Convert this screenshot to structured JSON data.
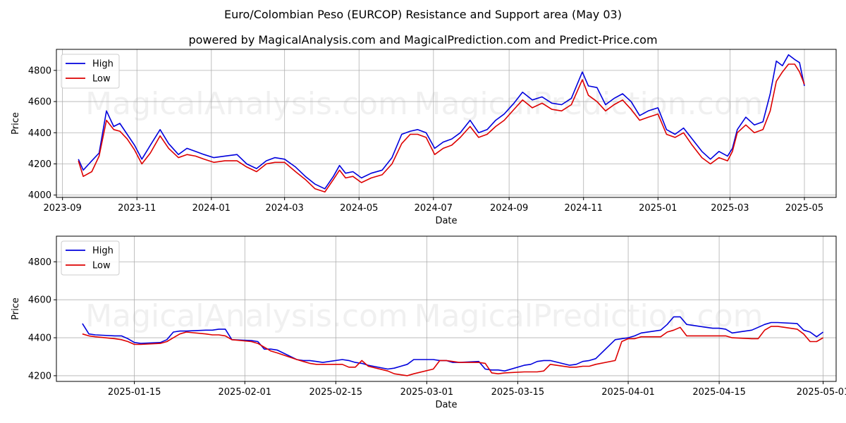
{
  "title": "Euro/Colombian Peso (EURCOP) Resistance and Support area (May 03)",
  "subtitle": "powered by MagicalAnalysis.com and MagicalPrediction.com and Predict-Price.com",
  "watermarks": [
    "MagicalAnalysis.com",
    "MagicalPrediction.com"
  ],
  "colors": {
    "high": "#0000dd",
    "low": "#dd0000",
    "grid": "#b0b0b0"
  },
  "chart_data": [
    {
      "type": "line",
      "title": "",
      "xlabel": "Date",
      "ylabel": "Price",
      "ylim": [
        3985,
        4935
      ],
      "xlim": [
        "2023-08-27",
        "2025-05-27"
      ],
      "yticks": [
        4000,
        4200,
        4400,
        4600,
        4800
      ],
      "xticks": [
        {
          "date": "2023-09-01",
          "label": "2023-09"
        },
        {
          "date": "2023-11-01",
          "label": "2023-11"
        },
        {
          "date": "2024-01-01",
          "label": "2024-01"
        },
        {
          "date": "2024-03-01",
          "label": "2024-03"
        },
        {
          "date": "2024-05-01",
          "label": "2024-05"
        },
        {
          "date": "2024-07-01",
          "label": "2024-07"
        },
        {
          "date": "2024-09-01",
          "label": "2024-09"
        },
        {
          "date": "2024-11-01",
          "label": "2024-11"
        },
        {
          "date": "2025-01-01",
          "label": "2025-01"
        },
        {
          "date": "2025-03-01",
          "label": "2025-03"
        },
        {
          "date": "2025-05-01",
          "label": "2025-05"
        }
      ],
      "grid": true,
      "legend": "upper-left",
      "series": [
        {
          "name": "High",
          "x": [
            "2023-09-14",
            "2023-09-18",
            "2023-09-25",
            "2023-10-01",
            "2023-10-07",
            "2023-10-13",
            "2023-10-18",
            "2023-10-24",
            "2023-10-30",
            "2023-11-05",
            "2023-11-12",
            "2023-11-20",
            "2023-11-27",
            "2023-12-05",
            "2023-12-12",
            "2023-12-19",
            "2023-12-26",
            "2024-01-03",
            "2024-01-12",
            "2024-01-22",
            "2024-01-30",
            "2024-02-07",
            "2024-02-15",
            "2024-02-22",
            "2024-03-01",
            "2024-03-10",
            "2024-03-18",
            "2024-03-26",
            "2024-04-03",
            "2024-04-10",
            "2024-04-15",
            "2024-04-20",
            "2024-04-26",
            "2024-05-03",
            "2024-05-11",
            "2024-05-20",
            "2024-05-28",
            "2024-06-05",
            "2024-06-12",
            "2024-06-18",
            "2024-06-25",
            "2024-07-02",
            "2024-07-09",
            "2024-07-16",
            "2024-07-23",
            "2024-07-31",
            "2024-08-07",
            "2024-08-14",
            "2024-08-21",
            "2024-08-28",
            "2024-09-05",
            "2024-09-12",
            "2024-09-20",
            "2024-09-28",
            "2024-10-06",
            "2024-10-14",
            "2024-10-22",
            "2024-10-31",
            "2024-11-05",
            "2024-11-12",
            "2024-11-19",
            "2024-11-26",
            "2024-12-03",
            "2024-12-10",
            "2024-12-17",
            "2024-12-24",
            "2025-01-01",
            "2025-01-08",
            "2025-01-15",
            "2025-01-22",
            "2025-01-29",
            "2025-02-06",
            "2025-02-13",
            "2025-02-20",
            "2025-02-27",
            "2025-03-03",
            "2025-03-07",
            "2025-03-14",
            "2025-03-21",
            "2025-03-28",
            "2025-04-03",
            "2025-04-08",
            "2025-04-13",
            "2025-04-18",
            "2025-04-23",
            "2025-04-27",
            "2025-05-01"
          ],
          "values": [
            4230,
            4160,
            4220,
            4270,
            4540,
            4440,
            4460,
            4390,
            4320,
            4230,
            4320,
            4420,
            4330,
            4260,
            4300,
            4280,
            4260,
            4240,
            4250,
            4260,
            4200,
            4170,
            4220,
            4240,
            4230,
            4180,
            4120,
            4070,
            4040,
            4120,
            4190,
            4140,
            4150,
            4110,
            4140,
            4160,
            4240,
            4390,
            4410,
            4420,
            4400,
            4300,
            4340,
            4360,
            4400,
            4480,
            4400,
            4420,
            4480,
            4520,
            4590,
            4660,
            4610,
            4630,
            4590,
            4580,
            4620,
            4790,
            4700,
            4690,
            4580,
            4620,
            4650,
            4600,
            4510,
            4540,
            4560,
            4420,
            4390,
            4430,
            4360,
            4280,
            4230,
            4280,
            4250,
            4300,
            4420,
            4500,
            4450,
            4470,
            4650,
            4860,
            4830,
            4900,
            4870,
            4850,
            4700
          ]
        },
        {
          "name": "Low",
          "x": [
            "2023-09-14",
            "2023-09-18",
            "2023-09-25",
            "2023-10-01",
            "2023-10-07",
            "2023-10-13",
            "2023-10-18",
            "2023-10-24",
            "2023-10-30",
            "2023-11-05",
            "2023-11-12",
            "2023-11-20",
            "2023-11-27",
            "2023-12-05",
            "2023-12-12",
            "2023-12-19",
            "2023-12-26",
            "2024-01-03",
            "2024-01-12",
            "2024-01-22",
            "2024-01-30",
            "2024-02-07",
            "2024-02-15",
            "2024-02-22",
            "2024-03-01",
            "2024-03-10",
            "2024-03-18",
            "2024-03-26",
            "2024-04-03",
            "2024-04-10",
            "2024-04-15",
            "2024-04-20",
            "2024-04-26",
            "2024-05-03",
            "2024-05-11",
            "2024-05-20",
            "2024-05-28",
            "2024-06-05",
            "2024-06-12",
            "2024-06-18",
            "2024-06-25",
            "2024-07-02",
            "2024-07-09",
            "2024-07-16",
            "2024-07-23",
            "2024-07-31",
            "2024-08-07",
            "2024-08-14",
            "2024-08-21",
            "2024-08-28",
            "2024-09-05",
            "2024-09-12",
            "2024-09-20",
            "2024-09-28",
            "2024-10-06",
            "2024-10-14",
            "2024-10-22",
            "2024-10-31",
            "2024-11-05",
            "2024-11-12",
            "2024-11-19",
            "2024-11-26",
            "2024-12-03",
            "2024-12-10",
            "2024-12-17",
            "2024-12-24",
            "2025-01-01",
            "2025-01-08",
            "2025-01-15",
            "2025-01-22",
            "2025-01-29",
            "2025-02-06",
            "2025-02-13",
            "2025-02-20",
            "2025-02-27",
            "2025-03-03",
            "2025-03-07",
            "2025-03-14",
            "2025-03-21",
            "2025-03-28",
            "2025-04-03",
            "2025-04-08",
            "2025-04-13",
            "2025-04-18",
            "2025-04-23",
            "2025-04-27",
            "2025-05-01"
          ],
          "values": [
            4220,
            4120,
            4150,
            4250,
            4480,
            4420,
            4410,
            4360,
            4290,
            4200,
            4270,
            4380,
            4300,
            4240,
            4260,
            4250,
            4230,
            4210,
            4220,
            4220,
            4180,
            4150,
            4200,
            4210,
            4210,
            4150,
            4100,
            4040,
            4020,
            4100,
            4160,
            4110,
            4120,
            4080,
            4110,
            4130,
            4200,
            4330,
            4390,
            4390,
            4370,
            4260,
            4300,
            4320,
            4370,
            4440,
            4370,
            4390,
            4440,
            4480,
            4550,
            4610,
            4560,
            4590,
            4550,
            4540,
            4580,
            4740,
            4640,
            4600,
            4540,
            4580,
            4610,
            4550,
            4480,
            4500,
            4520,
            4390,
            4370,
            4400,
            4320,
            4240,
            4200,
            4240,
            4220,
            4280,
            4400,
            4450,
            4400,
            4420,
            4540,
            4730,
            4790,
            4840,
            4840,
            4790,
            4710
          ]
        }
      ]
    },
    {
      "type": "line",
      "title": "",
      "xlabel": "Date",
      "ylabel": "Price",
      "ylim": [
        4170,
        4935
      ],
      "xlim": [
        "2025-01-03",
        "2025-05-03"
      ],
      "yticks": [
        4200,
        4400,
        4600,
        4800
      ],
      "xticks": [
        {
          "date": "2025-01-15",
          "label": "2025-01-15"
        },
        {
          "date": "2025-02-01",
          "label": "2025-02-01"
        },
        {
          "date": "2025-02-15",
          "label": "2025-02-15"
        },
        {
          "date": "2025-03-01",
          "label": "2025-03-01"
        },
        {
          "date": "2025-03-15",
          "label": "2025-03-15"
        },
        {
          "date": "2025-04-01",
          "label": "2025-04-01"
        },
        {
          "date": "2025-04-15",
          "label": "2025-04-15"
        },
        {
          "date": "2025-05-01",
          "label": "2025-05-01"
        }
      ],
      "grid": true,
      "legend": "upper-left",
      "series": [
        {
          "name": "High",
          "x": [
            "2025-01-07",
            "2025-01-08",
            "2025-01-09",
            "2025-01-12",
            "2025-01-13",
            "2025-01-14",
            "2025-01-15",
            "2025-01-16",
            "2025-01-19",
            "2025-01-20",
            "2025-01-21",
            "2025-01-22",
            "2025-01-23",
            "2025-01-26",
            "2025-01-27",
            "2025-01-28",
            "2025-01-29",
            "2025-01-30",
            "2025-02-02",
            "2025-02-03",
            "2025-02-04",
            "2025-02-05",
            "2025-02-06",
            "2025-02-09",
            "2025-02-10",
            "2025-02-11",
            "2025-02-12",
            "2025-02-13",
            "2025-02-16",
            "2025-02-17",
            "2025-02-18",
            "2025-02-19",
            "2025-02-20",
            "2025-02-23",
            "2025-02-24",
            "2025-02-25",
            "2025-02-26",
            "2025-02-27",
            "2025-03-02",
            "2025-03-03",
            "2025-03-04",
            "2025-03-05",
            "2025-03-06",
            "2025-03-09",
            "2025-03-10",
            "2025-03-11",
            "2025-03-12",
            "2025-03-13",
            "2025-03-16",
            "2025-03-17",
            "2025-03-18",
            "2025-03-19",
            "2025-03-20",
            "2025-03-23",
            "2025-03-24",
            "2025-03-25",
            "2025-03-26",
            "2025-03-27",
            "2025-03-30",
            "2025-03-31",
            "2025-04-01",
            "2025-04-02",
            "2025-04-03",
            "2025-04-06",
            "2025-04-07",
            "2025-04-08",
            "2025-04-09",
            "2025-04-10",
            "2025-04-13",
            "2025-04-14",
            "2025-04-15",
            "2025-04-16",
            "2025-04-17",
            "2025-04-20",
            "2025-04-21",
            "2025-04-22",
            "2025-04-23",
            "2025-04-24",
            "2025-04-27",
            "2025-04-28",
            "2025-04-29",
            "2025-04-30",
            "2025-05-01"
          ],
          "values": [
            4475,
            4420,
            4415,
            4410,
            4410,
            4395,
            4375,
            4370,
            4375,
            4390,
            4430,
            4435,
            4435,
            4440,
            4440,
            4445,
            4445,
            4390,
            4385,
            4380,
            4340,
            4340,
            4335,
            4285,
            4280,
            4280,
            4275,
            4270,
            4285,
            4280,
            4270,
            4265,
            4255,
            4235,
            4240,
            4250,
            4260,
            4285,
            4285,
            4280,
            4280,
            4270,
            4270,
            4275,
            4235,
            4230,
            4230,
            4225,
            4255,
            4260,
            4275,
            4280,
            4280,
            4255,
            4260,
            4275,
            4280,
            4290,
            4390,
            4395,
            4400,
            4410,
            4425,
            4440,
            4470,
            4510,
            4510,
            4470,
            4455,
            4450,
            4450,
            4445,
            4425,
            4440,
            4455,
            4470,
            4480,
            4480,
            4475,
            4440,
            4430,
            4405,
            4430
          ]
        },
        {
          "name": "Low",
          "x": [
            "2025-01-07",
            "2025-01-08",
            "2025-01-09",
            "2025-01-12",
            "2025-01-13",
            "2025-01-14",
            "2025-01-15",
            "2025-01-16",
            "2025-01-19",
            "2025-01-20",
            "2025-01-21",
            "2025-01-22",
            "2025-01-23",
            "2025-01-26",
            "2025-01-27",
            "2025-01-28",
            "2025-01-29",
            "2025-01-30",
            "2025-02-02",
            "2025-02-03",
            "2025-02-04",
            "2025-02-05",
            "2025-02-06",
            "2025-02-09",
            "2025-02-10",
            "2025-02-11",
            "2025-02-12",
            "2025-02-13",
            "2025-02-16",
            "2025-02-17",
            "2025-02-18",
            "2025-02-19",
            "2025-02-20",
            "2025-02-23",
            "2025-02-24",
            "2025-02-25",
            "2025-02-26",
            "2025-02-27",
            "2025-03-02",
            "2025-03-03",
            "2025-03-04",
            "2025-03-05",
            "2025-03-06",
            "2025-03-09",
            "2025-03-10",
            "2025-03-11",
            "2025-03-12",
            "2025-03-13",
            "2025-03-16",
            "2025-03-17",
            "2025-03-18",
            "2025-03-19",
            "2025-03-20",
            "2025-03-23",
            "2025-03-24",
            "2025-03-25",
            "2025-03-26",
            "2025-03-27",
            "2025-03-30",
            "2025-03-31",
            "2025-04-01",
            "2025-04-02",
            "2025-04-03",
            "2025-04-06",
            "2025-04-07",
            "2025-04-08",
            "2025-04-09",
            "2025-04-10",
            "2025-04-13",
            "2025-04-14",
            "2025-04-15",
            "2025-04-16",
            "2025-04-17",
            "2025-04-20",
            "2025-04-21",
            "2025-04-22",
            "2025-04-23",
            "2025-04-24",
            "2025-04-27",
            "2025-04-28",
            "2025-04-29",
            "2025-04-30",
            "2025-05-01"
          ],
          "values": [
            4420,
            4410,
            4405,
            4395,
            4390,
            4380,
            4365,
            4365,
            4370,
            4380,
            4400,
            4420,
            4430,
            4420,
            4415,
            4415,
            4410,
            4390,
            4380,
            4370,
            4350,
            4330,
            4320,
            4285,
            4275,
            4265,
            4260,
            4260,
            4260,
            4245,
            4245,
            4280,
            4250,
            4225,
            4210,
            4205,
            4200,
            4210,
            4235,
            4280,
            4280,
            4275,
            4270,
            4270,
            4265,
            4215,
            4210,
            4215,
            4220,
            4220,
            4220,
            4225,
            4260,
            4245,
            4245,
            4250,
            4250,
            4260,
            4280,
            4380,
            4395,
            4395,
            4405,
            4405,
            4430,
            4440,
            4455,
            4410,
            4410,
            4410,
            4410,
            4410,
            4400,
            4395,
            4395,
            4440,
            4460,
            4460,
            4445,
            4420,
            4380,
            4380,
            4400
          ]
        }
      ]
    }
  ]
}
